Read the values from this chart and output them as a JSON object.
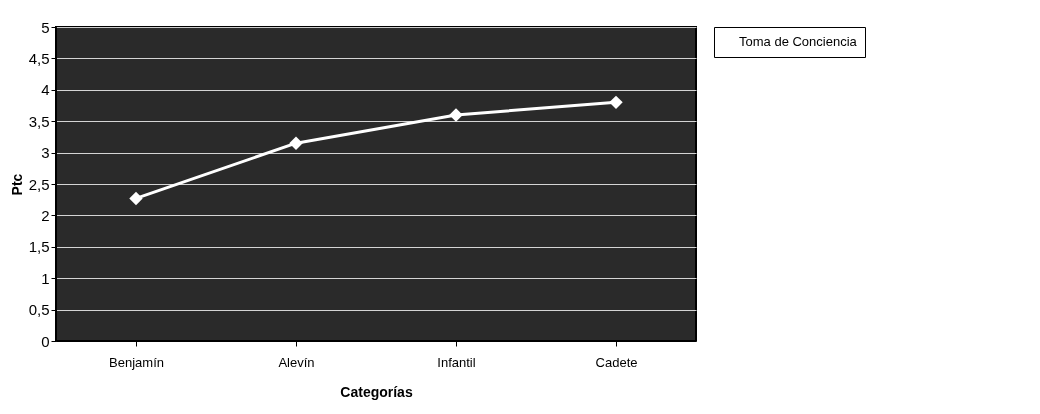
{
  "chart_data": {
    "type": "line",
    "xlabel": "Categorías",
    "ylabel": "Ptc",
    "categories": [
      "Benjamín",
      "Alevín",
      "Infantil",
      "Cadete"
    ],
    "series": [
      {
        "name": "Toma de Conciencia",
        "color": "#ffffff",
        "values": [
          2.27,
          3.15,
          3.6,
          3.8
        ]
      }
    ],
    "ylim": [
      0,
      5
    ],
    "yticks": [
      0,
      {
        "value": 0.5,
        "label": "0,5"
      },
      1,
      {
        "value": 1.5,
        "label": "1,5"
      },
      2,
      {
        "value": 2.5,
        "label": "2,5"
      },
      3,
      {
        "value": 3.5,
        "label": "3,5"
      },
      4,
      {
        "value": 4.5,
        "label": "4,5"
      },
      5
    ],
    "grid": "y",
    "legend": "right",
    "marker": "diamond",
    "line_style": "solid"
  }
}
